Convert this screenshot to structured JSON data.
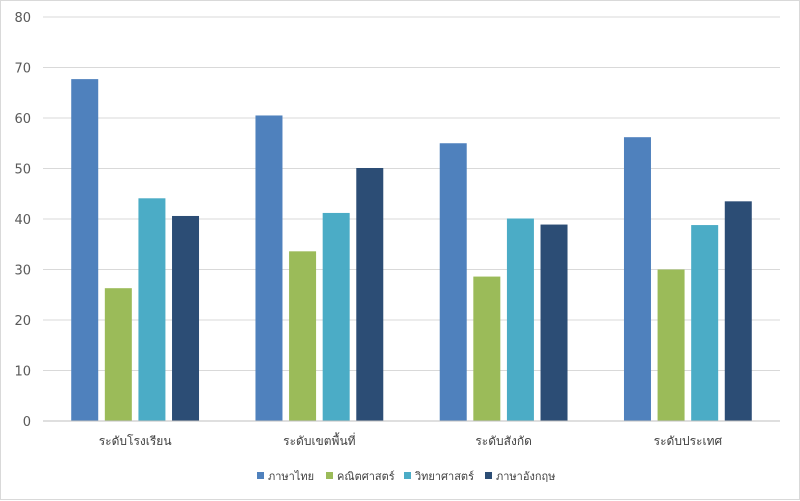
{
  "chart_data": {
    "type": "bar",
    "title": "",
    "xlabel": "",
    "ylabel": "",
    "ylim": [
      0,
      80
    ],
    "yticks": [
      0,
      10,
      20,
      30,
      40,
      50,
      60,
      70,
      80
    ],
    "grid": true,
    "legend_position": "bottom",
    "categories": [
      "ระดับโรงเรียน",
      "ระดับเขตพื้นที่",
      "ระดับสังกัด",
      "ระดับประเทศ"
    ],
    "series": [
      {
        "name": "ภาษาไทย",
        "color": "#4f81bd",
        "values": [
          67.7,
          60.5,
          55.0,
          56.2
        ]
      },
      {
        "name": "คณิตศาสตร์",
        "color": "#9bbb59",
        "values": [
          26.3,
          33.6,
          28.6,
          30.0
        ]
      },
      {
        "name": "วิทยาศาสตร์",
        "color": "#4bacc6",
        "values": [
          44.1,
          41.2,
          40.1,
          38.8
        ]
      },
      {
        "name": "ภาษาอังกฤษ",
        "color": "#2c4d75",
        "values": [
          40.6,
          50.1,
          38.9,
          43.5
        ]
      }
    ]
  }
}
